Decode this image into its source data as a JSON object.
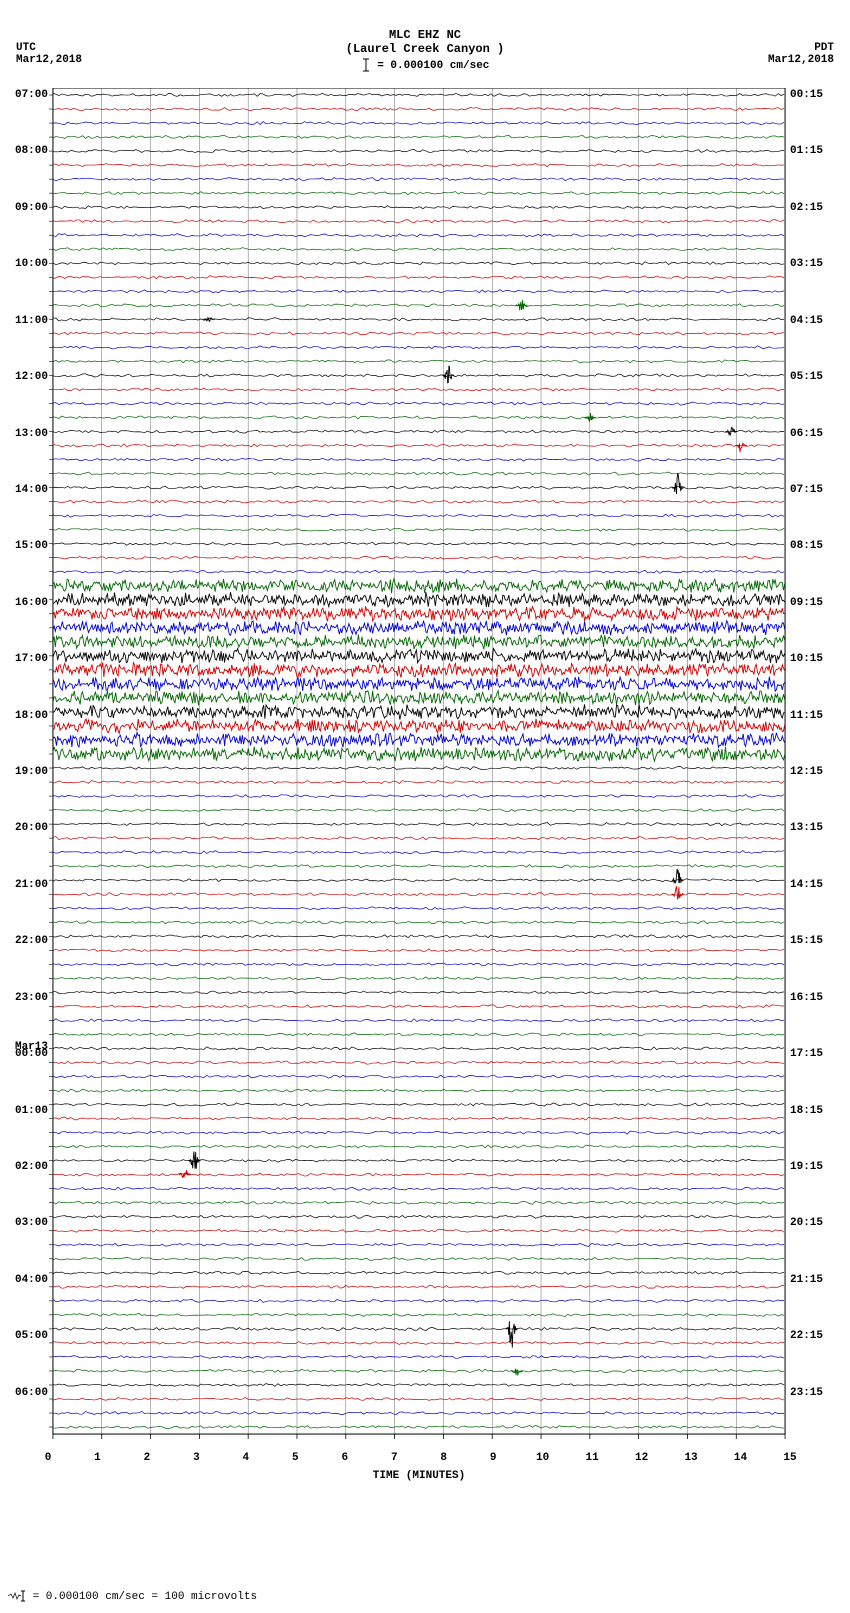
{
  "header": {
    "station_line": "MLC EHZ NC",
    "location_line": "(Laurel Creek Canyon )",
    "scale_label": "= 0.000100 cm/sec"
  },
  "tz_left": "UTC",
  "date_left": "Mar12,2018",
  "tz_right": "PDT",
  "date_right": "Mar12,2018",
  "footer": "= 0.000100 cm/sec =   100 microvolts",
  "xaxis": {
    "title": "TIME (MINUTES)",
    "ticks": [
      "0",
      "1",
      "2",
      "3",
      "4",
      "5",
      "6",
      "7",
      "8",
      "9",
      "10",
      "11",
      "12",
      "13",
      "14",
      "15"
    ]
  },
  "colors": {
    "sequence": [
      "#000000",
      "#cc0000",
      "#0000cc",
      "#006600"
    ],
    "grid": "#666666",
    "background": "#ffffff"
  },
  "plot": {
    "grid_minutes": 15,
    "traces_per_hour": 4,
    "total_traces": 96,
    "thick_start_index": 35,
    "thick_end_index": 47,
    "spikes": [
      {
        "trace": 15,
        "minute": 9.6,
        "height": 10
      },
      {
        "trace": 16,
        "minute": 3.2,
        "height": 4
      },
      {
        "trace": 20,
        "minute": 8.1,
        "height": 12
      },
      {
        "trace": 23,
        "minute": 11.0,
        "height": 5
      },
      {
        "trace": 24,
        "minute": 13.9,
        "height": 6
      },
      {
        "trace": 25,
        "minute": 14.1,
        "height": 8
      },
      {
        "trace": 28,
        "minute": 12.8,
        "height": 16
      },
      {
        "trace": 56,
        "minute": 12.8,
        "height": 14
      },
      {
        "trace": 57,
        "minute": 12.8,
        "height": 10
      },
      {
        "trace": 76,
        "minute": 2.9,
        "height": 14
      },
      {
        "trace": 77,
        "minute": 2.7,
        "height": 8
      },
      {
        "trace": 88,
        "minute": 9.4,
        "height": 20
      },
      {
        "trace": 91,
        "minute": 9.5,
        "height": 8
      }
    ]
  },
  "left_labels": [
    {
      "text": "07:00",
      "index": 0
    },
    {
      "text": "08:00",
      "index": 4
    },
    {
      "text": "09:00",
      "index": 8
    },
    {
      "text": "10:00",
      "index": 12
    },
    {
      "text": "11:00",
      "index": 16
    },
    {
      "text": "12:00",
      "index": 20
    },
    {
      "text": "13:00",
      "index": 24
    },
    {
      "text": "14:00",
      "index": 28
    },
    {
      "text": "15:00",
      "index": 32
    },
    {
      "text": "16:00",
      "index": 36
    },
    {
      "text": "17:00",
      "index": 40
    },
    {
      "text": "18:00",
      "index": 44
    },
    {
      "text": "19:00",
      "index": 48
    },
    {
      "text": "20:00",
      "index": 52
    },
    {
      "text": "21:00",
      "index": 56
    },
    {
      "text": "22:00",
      "index": 60
    },
    {
      "text": "23:00",
      "index": 64
    },
    {
      "text": "Mar13",
      "index": 67.5
    },
    {
      "text": "00:00",
      "index": 68
    },
    {
      "text": "01:00",
      "index": 72
    },
    {
      "text": "02:00",
      "index": 76
    },
    {
      "text": "03:00",
      "index": 80
    },
    {
      "text": "04:00",
      "index": 84
    },
    {
      "text": "05:00",
      "index": 88
    },
    {
      "text": "06:00",
      "index": 92
    }
  ],
  "right_labels": [
    {
      "text": "00:15",
      "index": 0
    },
    {
      "text": "01:15",
      "index": 4
    },
    {
      "text": "02:15",
      "index": 8
    },
    {
      "text": "03:15",
      "index": 12
    },
    {
      "text": "04:15",
      "index": 16
    },
    {
      "text": "05:15",
      "index": 20
    },
    {
      "text": "06:15",
      "index": 24
    },
    {
      "text": "07:15",
      "index": 28
    },
    {
      "text": "08:15",
      "index": 32
    },
    {
      "text": "09:15",
      "index": 36
    },
    {
      "text": "10:15",
      "index": 40
    },
    {
      "text": "11:15",
      "index": 44
    },
    {
      "text": "12:15",
      "index": 48
    },
    {
      "text": "13:15",
      "index": 52
    },
    {
      "text": "14:15",
      "index": 56
    },
    {
      "text": "15:15",
      "index": 60
    },
    {
      "text": "16:15",
      "index": 64
    },
    {
      "text": "17:15",
      "index": 68
    },
    {
      "text": "18:15",
      "index": 72
    },
    {
      "text": "19:15",
      "index": 76
    },
    {
      "text": "20:15",
      "index": 80
    },
    {
      "text": "21:15",
      "index": 84
    },
    {
      "text": "22:15",
      "index": 88
    },
    {
      "text": "23:15",
      "index": 92
    }
  ]
}
